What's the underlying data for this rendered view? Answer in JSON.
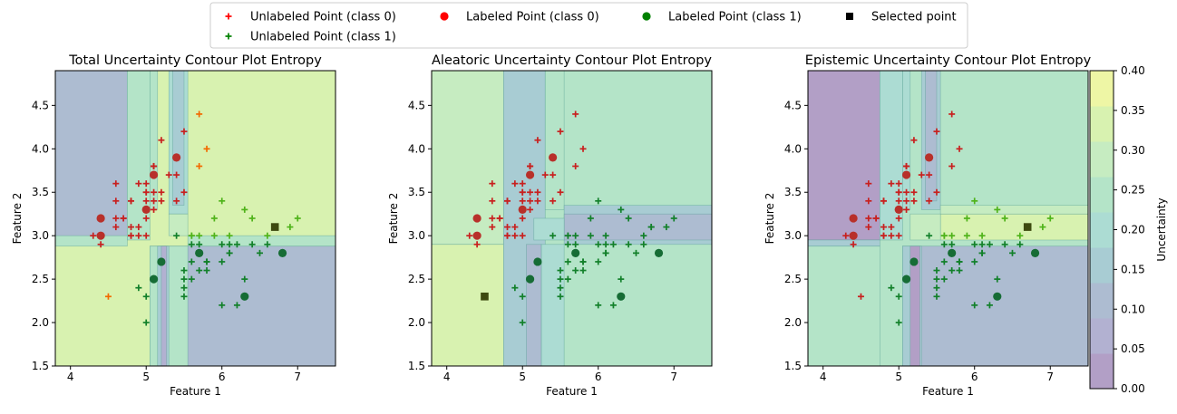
{
  "legend": {
    "entries": [
      {
        "label": "Unlabeled Point (class 0)",
        "marker": "plus",
        "color": "#ff0000"
      },
      {
        "label": "Unlabeled Point (class 1)",
        "marker": "plus",
        "color": "#008000"
      },
      {
        "label": "Labeled Point (class 0)",
        "marker": "circle",
        "color": "#ff0000"
      },
      {
        "label": "Labeled Point (class 1)",
        "marker": "circle",
        "color": "#008000"
      },
      {
        "label": "Selected point",
        "marker": "square",
        "color": "#000000"
      }
    ]
  },
  "colorbar": {
    "label": "Uncertainty",
    "ticks": [
      "0.00",
      "0.05",
      "0.10",
      "0.15",
      "0.20",
      "0.25",
      "0.30",
      "0.35",
      "0.40"
    ],
    "levels": [
      0,
      0.05,
      0.1,
      0.15,
      0.2,
      0.25,
      0.3,
      0.35,
      0.4
    ],
    "colors": [
      "#b29fc6",
      "#b2b1d1",
      "#adbcd1",
      "#a8ccd3",
      "#acdcd3",
      "#b4e4c8",
      "#c6ecc1",
      "#d8f2b0",
      "#eef6a5"
    ]
  },
  "chart_data": [
    {
      "type": "scatter",
      "title": "Total Uncertainty Contour Plot Entropy",
      "xlabel": "Feature 1",
      "ylabel": "Feature 2",
      "xlim": [
        3.8,
        7.5
      ],
      "ylim": [
        1.5,
        4.9
      ],
      "xticks": [
        "4",
        "5",
        "6",
        "7"
      ],
      "yticks": [
        "1.5",
        "2.0",
        "2.5",
        "3.0",
        "3.5",
        "4.0",
        "4.5"
      ],
      "regions": [
        {
          "x": [
            3.8,
            7.5
          ],
          "y": [
            1.5,
            4.9
          ],
          "level": 0.375
        },
        {
          "x": [
            3.8,
            4.75
          ],
          "y": [
            2.95,
            4.9
          ],
          "level": 0.125
        },
        {
          "x": [
            4.75,
            5.05
          ],
          "y": [
            2.95,
            4.9
          ],
          "level": 0.275
        },
        {
          "x": [
            5.05,
            5.15
          ],
          "y": [
            3.3,
            4.9
          ],
          "level": 0.275
        },
        {
          "x": [
            5.3,
            5.55
          ],
          "y": [
            3.25,
            4.9
          ],
          "level": 0.225
        },
        {
          "x": [
            5.35,
            5.5
          ],
          "y": [
            3.35,
            4.9
          ],
          "level": 0.175
        },
        {
          "x": [
            3.8,
            4.75
          ],
          "y": [
            2.88,
            3.0
          ],
          "level": 0.275
        },
        {
          "x": [
            5.05,
            7.5
          ],
          "y": [
            1.5,
            2.88
          ],
          "level": 0.125
        },
        {
          "x": [
            5.05,
            5.55
          ],
          "y": [
            1.5,
            2.88
          ],
          "level": 0.275
        },
        {
          "x": [
            5.15,
            5.3
          ],
          "y": [
            1.5,
            2.88
          ],
          "level": 0.175
        },
        {
          "x": [
            5.2,
            5.27
          ],
          "y": [
            1.5,
            2.88
          ],
          "level": 0.075
        },
        {
          "x": [
            5.55,
            7.5
          ],
          "y": [
            2.88,
            3.0
          ],
          "level": 0.275
        },
        {
          "x": [
            5.3,
            5.55
          ],
          "y": [
            3.0,
            3.25
          ],
          "level": 0.325
        }
      ],
      "selected": [
        [
          6.7,
          3.1
        ]
      ]
    },
    {
      "type": "scatter",
      "title": "Aleatoric Uncertainty Contour Plot Entropy",
      "xlabel": "Feature 1",
      "ylabel": "Feature 2",
      "xlim": [
        3.8,
        7.5
      ],
      "ylim": [
        1.5,
        4.9
      ],
      "xticks": [
        "4",
        "5",
        "6",
        "7"
      ],
      "yticks": [
        "1.5",
        "2.0",
        "2.5",
        "3.0",
        "3.5",
        "4.0",
        "4.5"
      ],
      "regions": [
        {
          "x": [
            3.8,
            7.5
          ],
          "y": [
            1.5,
            4.9
          ],
          "level": 0.275
        },
        {
          "x": [
            3.8,
            4.75
          ],
          "y": [
            2.9,
            4.9
          ],
          "level": 0.325
        },
        {
          "x": [
            3.8,
            4.75
          ],
          "y": [
            1.5,
            2.9
          ],
          "level": 0.375
        },
        {
          "x": [
            4.75,
            5.3
          ],
          "y": [
            1.5,
            4.9
          ],
          "level": 0.175
        },
        {
          "x": [
            5.3,
            5.55
          ],
          "y": [
            3.3,
            4.9
          ],
          "level": 0.275
        },
        {
          "x": [
            5.05,
            5.25
          ],
          "y": [
            1.5,
            2.9
          ],
          "level": 0.125
        },
        {
          "x": [
            5.25,
            5.55
          ],
          "y": [
            1.5,
            2.9
          ],
          "level": 0.225
        },
        {
          "x": [
            5.55,
            7.5
          ],
          "y": [
            2.9,
            3.35
          ],
          "level": 0.175
        },
        {
          "x": [
            5.55,
            7.5
          ],
          "y": [
            2.95,
            3.25
          ],
          "level": 0.125
        },
        {
          "x": [
            5.15,
            5.55
          ],
          "y": [
            2.95,
            3.2
          ],
          "level": 0.225
        }
      ],
      "selected": [
        [
          4.5,
          2.3
        ]
      ]
    },
    {
      "type": "scatter",
      "title": "Epistemic Uncertainty Contour Plot Entropy",
      "xlabel": "Feature 1",
      "ylabel": "Feature 2",
      "xlim": [
        3.8,
        7.5
      ],
      "ylim": [
        1.5,
        4.9
      ],
      "xticks": [
        "4",
        "5",
        "6",
        "7"
      ],
      "yticks": [
        "1.5",
        "2.0",
        "2.5",
        "3.0",
        "3.5",
        "4.0",
        "4.5"
      ],
      "regions": [
        {
          "x": [
            3.8,
            7.5
          ],
          "y": [
            1.5,
            4.9
          ],
          "level": 0.275
        },
        {
          "x": [
            3.8,
            4.75
          ],
          "y": [
            2.95,
            4.9
          ],
          "level": 0.025
        },
        {
          "x": [
            3.8,
            4.75
          ],
          "y": [
            1.5,
            2.88
          ],
          "level": 0.275
        },
        {
          "x": [
            3.8,
            4.75
          ],
          "y": [
            2.88,
            2.95
          ],
          "level": 0.175
        },
        {
          "x": [
            4.75,
            5.05
          ],
          "y": [
            2.95,
            4.9
          ],
          "level": 0.225
        },
        {
          "x": [
            5.05,
            5.15
          ],
          "y": [
            3.3,
            4.9
          ],
          "level": 0.225
        },
        {
          "x": [
            5.3,
            5.55
          ],
          "y": [
            3.3,
            4.9
          ],
          "level": 0.175
        },
        {
          "x": [
            5.35,
            5.5
          ],
          "y": [
            3.4,
            4.9
          ],
          "level": 0.125
        },
        {
          "x": [
            5.05,
            7.5
          ],
          "y": [
            1.5,
            2.88
          ],
          "level": 0.125
        },
        {
          "x": [
            5.05,
            5.3
          ],
          "y": [
            1.5,
            2.88
          ],
          "level": 0.175
        },
        {
          "x": [
            5.15,
            5.28
          ],
          "y": [
            1.5,
            2.88
          ],
          "level": 0.025
        },
        {
          "x": [
            5.55,
            7.5
          ],
          "y": [
            2.95,
            3.25
          ],
          "level": 0.375
        },
        {
          "x": [
            5.55,
            7.5
          ],
          "y": [
            3.25,
            3.35
          ],
          "level": 0.325
        },
        {
          "x": [
            5.15,
            5.55
          ],
          "y": [
            2.95,
            3.25
          ],
          "level": 0.325
        }
      ],
      "selected": [
        [
          6.7,
          3.1
        ]
      ]
    }
  ],
  "points": {
    "unlabeled_class0": [
      [
        5.1,
        3.5
      ],
      [
        4.9,
        3.0
      ],
      [
        4.7,
        3.2
      ],
      [
        4.6,
        3.1
      ],
      [
        5.0,
        3.6
      ],
      [
        5.4,
        3.9
      ],
      [
        4.6,
        3.4
      ],
      [
        5.0,
        3.4
      ],
      [
        4.4,
        2.9
      ],
      [
        4.9,
        3.1
      ],
      [
        5.4,
        3.7
      ],
      [
        4.8,
        3.4
      ],
      [
        4.8,
        3.0
      ],
      [
        4.3,
        3.0
      ],
      [
        5.8,
        4.0
      ],
      [
        5.7,
        4.4
      ],
      [
        5.1,
        3.8
      ],
      [
        5.7,
        3.8
      ],
      [
        5.1,
        3.7
      ],
      [
        4.6,
        3.6
      ],
      [
        5.1,
        3.3
      ],
      [
        4.8,
        3.4
      ],
      [
        5.0,
        3.0
      ],
      [
        5.2,
        3.5
      ],
      [
        5.2,
        3.4
      ],
      [
        4.7,
        3.2
      ],
      [
        4.8,
        3.1
      ],
      [
        5.4,
        3.4
      ],
      [
        5.2,
        4.1
      ],
      [
        5.5,
        4.2
      ],
      [
        5.0,
        3.2
      ],
      [
        5.5,
        3.5
      ],
      [
        4.9,
        3.6
      ],
      [
        4.4,
        3.0
      ],
      [
        5.1,
        3.4
      ],
      [
        5.0,
        3.5
      ],
      [
        4.5,
        2.3
      ],
      [
        4.4,
        3.2
      ],
      [
        5.0,
        3.5
      ],
      [
        5.1,
        3.8
      ],
      [
        4.8,
        3.0
      ],
      [
        5.1,
        3.8
      ],
      [
        4.6,
        3.2
      ],
      [
        5.3,
        3.7
      ],
      [
        5.0,
        3.3
      ]
    ],
    "unlabeled_class1": [
      [
        7.0,
        3.2
      ],
      [
        6.4,
        3.2
      ],
      [
        6.9,
        3.1
      ],
      [
        5.5,
        2.3
      ],
      [
        6.5,
        2.8
      ],
      [
        5.7,
        2.8
      ],
      [
        6.3,
        3.3
      ],
      [
        4.9,
        2.4
      ],
      [
        6.6,
        2.9
      ],
      [
        5.2,
        2.7
      ],
      [
        5.0,
        2.0
      ],
      [
        5.9,
        3.0
      ],
      [
        6.0,
        2.2
      ],
      [
        6.1,
        2.9
      ],
      [
        5.6,
        2.9
      ],
      [
        6.7,
        3.1
      ],
      [
        5.6,
        3.0
      ],
      [
        5.8,
        2.7
      ],
      [
        6.2,
        2.2
      ],
      [
        5.6,
        2.5
      ],
      [
        5.9,
        3.2
      ],
      [
        6.1,
        2.8
      ],
      [
        6.3,
        2.5
      ],
      [
        6.1,
        2.8
      ],
      [
        6.4,
        2.9
      ],
      [
        6.6,
        3.0
      ],
      [
        6.8,
        2.8
      ],
      [
        6.0,
        2.9
      ],
      [
        5.7,
        2.6
      ],
      [
        5.5,
        2.4
      ],
      [
        5.8,
        2.7
      ],
      [
        6.0,
        2.7
      ],
      [
        5.4,
        3.0
      ],
      [
        6.0,
        3.4
      ],
      [
        6.7,
        3.1
      ],
      [
        6.3,
        2.3
      ],
      [
        5.6,
        3.0
      ],
      [
        5.5,
        2.5
      ],
      [
        5.5,
        2.6
      ],
      [
        6.1,
        3.0
      ],
      [
        5.8,
        2.6
      ],
      [
        5.0,
        2.3
      ],
      [
        5.6,
        2.7
      ],
      [
        5.7,
        3.0
      ],
      [
        5.7,
        2.9
      ],
      [
        6.2,
        2.9
      ],
      [
        5.1,
        2.5
      ],
      [
        5.7,
        2.8
      ]
    ],
    "labeled_class0": [
      [
        4.4,
        3.2
      ],
      [
        4.4,
        3.0
      ],
      [
        5.0,
        3.3
      ],
      [
        5.1,
        3.7
      ],
      [
        5.4,
        3.9
      ]
    ],
    "labeled_class1": [
      [
        5.2,
        2.7
      ],
      [
        6.8,
        2.8
      ],
      [
        5.7,
        2.8
      ],
      [
        5.1,
        2.5
      ],
      [
        6.3,
        2.3
      ]
    ]
  }
}
